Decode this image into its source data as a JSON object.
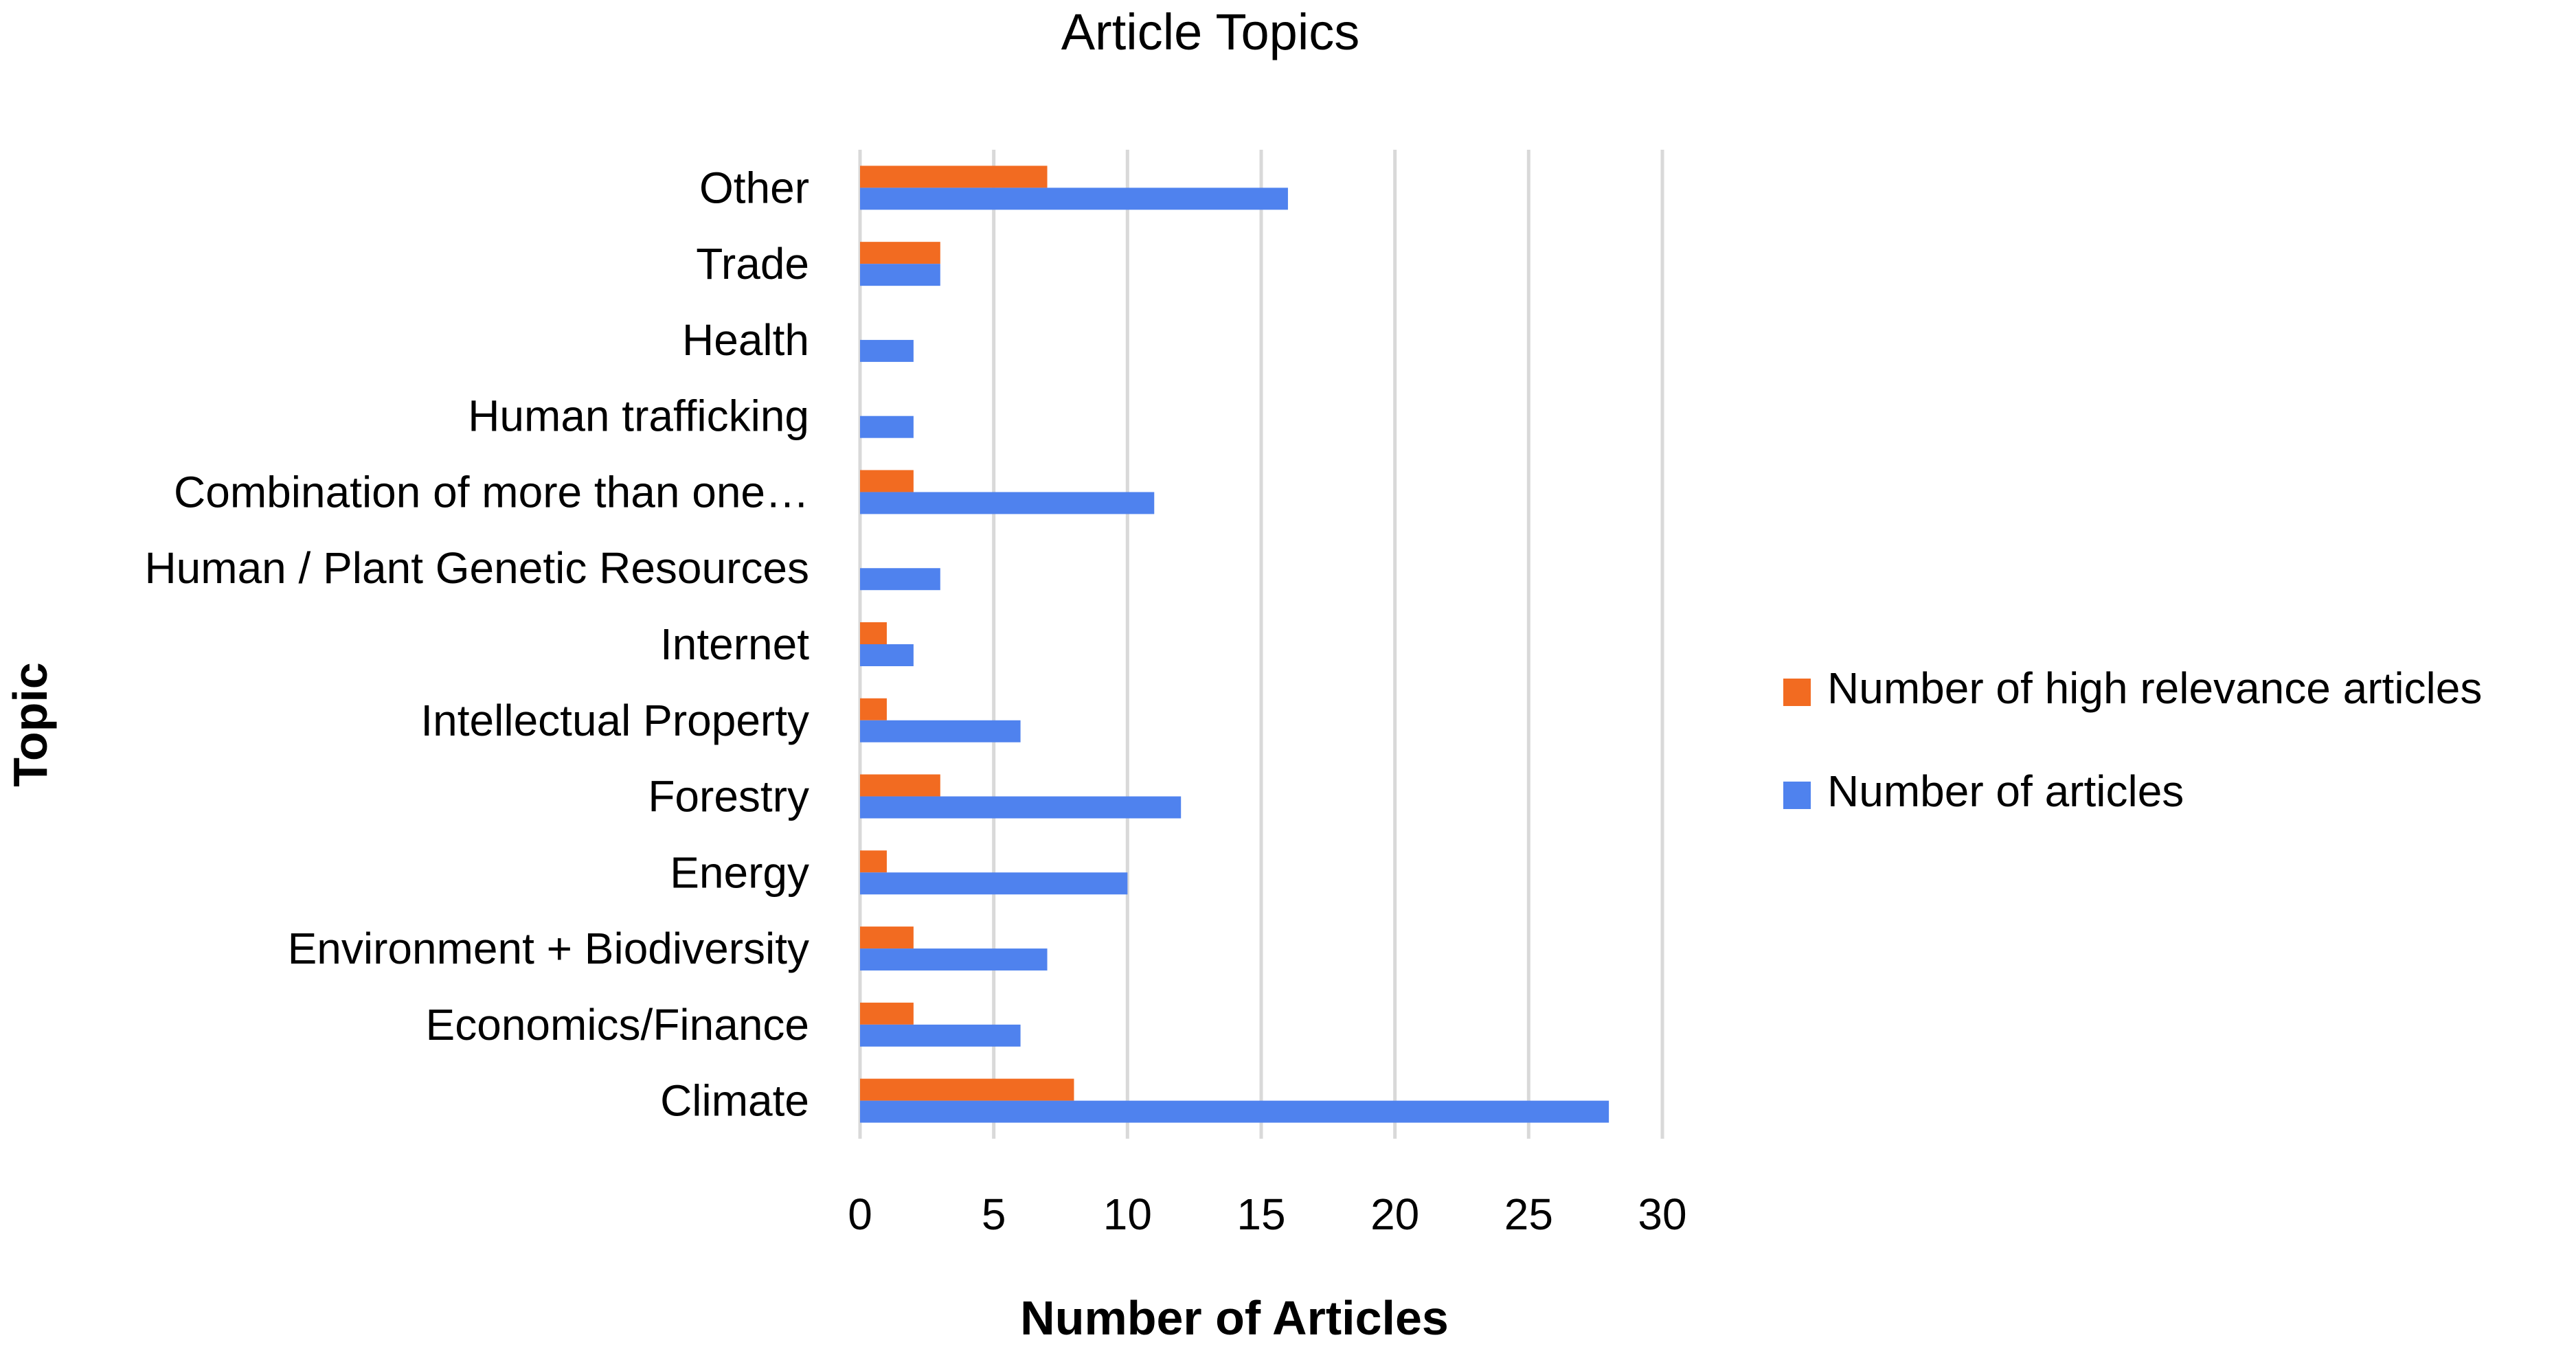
{
  "chart_data": {
    "type": "bar",
    "orientation": "horizontal",
    "title": "Article Topics",
    "xlabel": "Number of Articles",
    "ylabel": "Topic",
    "xlim": [
      0,
      30
    ],
    "xticks": [
      "0",
      "5",
      "10",
      "15",
      "20",
      "25",
      "30"
    ],
    "grid": true,
    "legend_position": "right",
    "categories": [
      "Climate",
      "Economics/Finance",
      "Environment + Biodiversity",
      "Energy",
      "Forestry",
      "Intellectual Property",
      "Internet",
      "Human / Plant Genetic Resources",
      "Combination of more than one…",
      "Human trafficking",
      "Health",
      "Trade",
      "Other"
    ],
    "series": [
      {
        "name": "Number of high relevance articles",
        "color": "#f26b21",
        "values": [
          8,
          2,
          2,
          1,
          3,
          1,
          1,
          0,
          2,
          0,
          0,
          3,
          7
        ]
      },
      {
        "name": "Number of articles",
        "color": "#4f82ee",
        "values": [
          28,
          6,
          7,
          10,
          12,
          6,
          2,
          3,
          11,
          2,
          2,
          3,
          16
        ]
      }
    ]
  }
}
